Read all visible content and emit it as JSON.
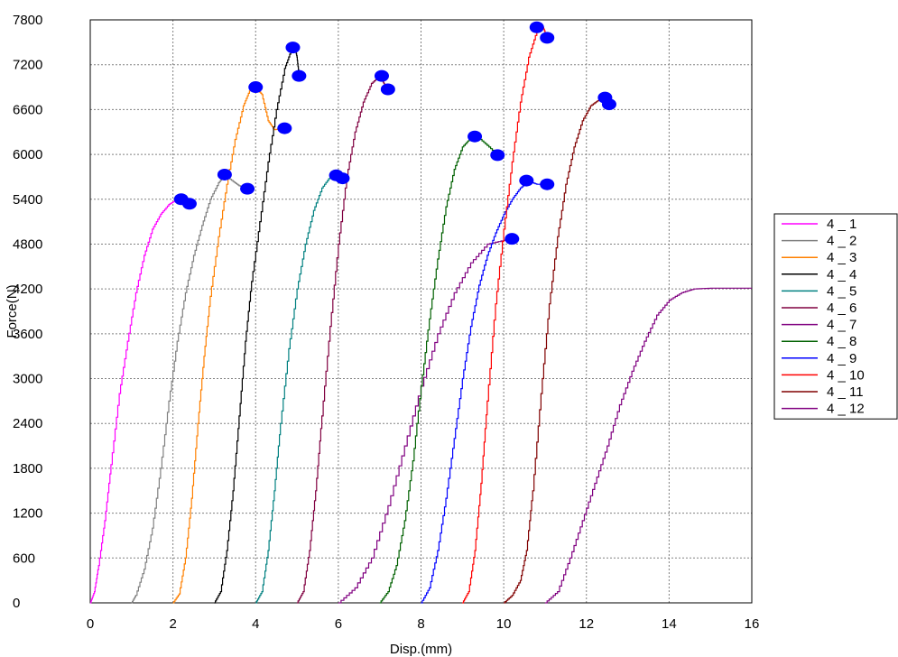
{
  "chart_data": {
    "type": "line",
    "xlabel": "Disp.(mm)",
    "ylabel": "Force(N)",
    "xlim": [
      0,
      16
    ],
    "ylim": [
      0,
      7800
    ],
    "x_ticks": [
      "0",
      "2",
      "4",
      "6",
      "8",
      "10",
      "12",
      "14",
      "16"
    ],
    "y_ticks": [
      "0",
      "600",
      "1200",
      "1800",
      "2400",
      "3000",
      "3600",
      "4200",
      "4800",
      "5400",
      "6000",
      "6600",
      "7200",
      "7800"
    ],
    "grid": true,
    "legend_position": "right",
    "series": [
      {
        "name": "4 _ 1",
        "color": "#ff00ff",
        "points": [
          [
            0,
            0
          ],
          [
            0.1,
            150
          ],
          [
            0.2,
            500
          ],
          [
            0.35,
            1100
          ],
          [
            0.5,
            1850
          ],
          [
            0.7,
            2800
          ],
          [
            0.9,
            3500
          ],
          [
            1.1,
            4150
          ],
          [
            1.3,
            4650
          ],
          [
            1.5,
            5000
          ],
          [
            1.7,
            5200
          ],
          [
            1.9,
            5330
          ],
          [
            2.05,
            5380
          ],
          [
            2.2,
            5400
          ]
        ],
        "markers": [
          [
            2.2,
            5400
          ],
          [
            2.4,
            5340
          ]
        ]
      },
      {
        "name": "4 _ 2",
        "color": "#808080",
        "points": [
          [
            1.0,
            0
          ],
          [
            1.1,
            100
          ],
          [
            1.3,
            450
          ],
          [
            1.5,
            1000
          ],
          [
            1.7,
            1800
          ],
          [
            1.9,
            2700
          ],
          [
            2.1,
            3500
          ],
          [
            2.3,
            4150
          ],
          [
            2.5,
            4650
          ],
          [
            2.7,
            5050
          ],
          [
            2.9,
            5400
          ],
          [
            3.1,
            5620
          ],
          [
            3.25,
            5720
          ],
          [
            3.45,
            5640
          ],
          [
            3.6,
            5580
          ],
          [
            3.8,
            5540
          ]
        ],
        "markers": [
          [
            3.25,
            5730
          ],
          [
            3.8,
            5540
          ]
        ]
      },
      {
        "name": "4 _ 3",
        "color": "#ff8000",
        "points": [
          [
            2.0,
            0
          ],
          [
            2.15,
            120
          ],
          [
            2.3,
            600
          ],
          [
            2.45,
            1400
          ],
          [
            2.6,
            2400
          ],
          [
            2.75,
            3300
          ],
          [
            2.9,
            4100
          ],
          [
            3.1,
            4900
          ],
          [
            3.3,
            5600
          ],
          [
            3.5,
            6200
          ],
          [
            3.7,
            6650
          ],
          [
            3.85,
            6850
          ],
          [
            4.0,
            6900
          ],
          [
            4.15,
            6800
          ],
          [
            4.3,
            6450
          ],
          [
            4.45,
            6330
          ],
          [
            4.7,
            6360
          ]
        ],
        "markers": [
          [
            4.0,
            6900
          ],
          [
            4.7,
            6350
          ]
        ]
      },
      {
        "name": "4 _ 4",
        "color": "#000000",
        "points": [
          [
            3.0,
            0
          ],
          [
            3.15,
            150
          ],
          [
            3.3,
            700
          ],
          [
            3.45,
            1500
          ],
          [
            3.6,
            2500
          ],
          [
            3.75,
            3500
          ],
          [
            3.9,
            4300
          ],
          [
            4.1,
            5100
          ],
          [
            4.3,
            5900
          ],
          [
            4.5,
            6600
          ],
          [
            4.7,
            7150
          ],
          [
            4.85,
            7380
          ],
          [
            4.95,
            7430
          ],
          [
            5.0,
            7300
          ],
          [
            5.05,
            7050
          ]
        ],
        "markers": [
          [
            4.9,
            7430
          ],
          [
            5.05,
            7050
          ]
        ]
      },
      {
        "name": "4 _ 5",
        "color": "#008080",
        "points": [
          [
            4.0,
            0
          ],
          [
            4.15,
            150
          ],
          [
            4.3,
            700
          ],
          [
            4.45,
            1500
          ],
          [
            4.6,
            2400
          ],
          [
            4.8,
            3400
          ],
          [
            5.0,
            4200
          ],
          [
            5.2,
            4800
          ],
          [
            5.4,
            5250
          ],
          [
            5.6,
            5550
          ],
          [
            5.8,
            5700
          ],
          [
            5.95,
            5720
          ],
          [
            6.1,
            5680
          ]
        ],
        "markers": [
          [
            5.95,
            5720
          ],
          [
            6.1,
            5680
          ]
        ]
      },
      {
        "name": "4 _ 6",
        "color": "#800040",
        "points": [
          [
            5.0,
            0
          ],
          [
            5.15,
            150
          ],
          [
            5.3,
            700
          ],
          [
            5.45,
            1500
          ],
          [
            5.6,
            2500
          ],
          [
            5.8,
            3700
          ],
          [
            6.0,
            4800
          ],
          [
            6.2,
            5700
          ],
          [
            6.4,
            6300
          ],
          [
            6.6,
            6700
          ],
          [
            6.8,
            6950
          ],
          [
            7.0,
            7050
          ],
          [
            7.1,
            6950
          ],
          [
            7.2,
            6870
          ]
        ],
        "markers": [
          [
            7.05,
            7050
          ],
          [
            7.2,
            6870
          ]
        ]
      },
      {
        "name": "4 _ 7",
        "color": "#800080",
        "points": [
          [
            6.0,
            0
          ],
          [
            6.4,
            200
          ],
          [
            6.8,
            600
          ],
          [
            7.2,
            1300
          ],
          [
            7.6,
            2100
          ],
          [
            8.0,
            2900
          ],
          [
            8.4,
            3600
          ],
          [
            8.8,
            4150
          ],
          [
            9.2,
            4550
          ],
          [
            9.6,
            4800
          ],
          [
            10.0,
            4850
          ],
          [
            10.2,
            4870
          ]
        ],
        "markers": [
          [
            10.2,
            4870
          ]
        ]
      },
      {
        "name": "4 _ 8",
        "color": "#006000",
        "points": [
          [
            7.0,
            0
          ],
          [
            7.2,
            150
          ],
          [
            7.4,
            500
          ],
          [
            7.6,
            1100
          ],
          [
            7.8,
            1900
          ],
          [
            8.0,
            2900
          ],
          [
            8.2,
            3800
          ],
          [
            8.4,
            4600
          ],
          [
            8.6,
            5300
          ],
          [
            8.8,
            5800
          ],
          [
            9.0,
            6100
          ],
          [
            9.2,
            6220
          ],
          [
            9.35,
            6240
          ],
          [
            9.6,
            6120
          ],
          [
            9.85,
            5990
          ]
        ],
        "markers": [
          [
            9.3,
            6240
          ],
          [
            9.85,
            5990
          ]
        ]
      },
      {
        "name": "4 _ 9",
        "color": "#0000ff",
        "points": [
          [
            8.0,
            0
          ],
          [
            8.2,
            200
          ],
          [
            8.4,
            700
          ],
          [
            8.6,
            1400
          ],
          [
            8.8,
            2200
          ],
          [
            9.0,
            3000
          ],
          [
            9.2,
            3700
          ],
          [
            9.4,
            4250
          ],
          [
            9.6,
            4650
          ],
          [
            9.8,
            4950
          ],
          [
            10.0,
            5200
          ],
          [
            10.2,
            5400
          ],
          [
            10.4,
            5550
          ],
          [
            10.6,
            5640
          ],
          [
            10.8,
            5600
          ],
          [
            11.0,
            5600
          ]
        ],
        "markers": [
          [
            10.55,
            5650
          ],
          [
            11.05,
            5600
          ]
        ]
      },
      {
        "name": "4 _ 10",
        "color": "#ff0000",
        "points": [
          [
            9.0,
            0
          ],
          [
            9.15,
            150
          ],
          [
            9.3,
            700
          ],
          [
            9.45,
            1600
          ],
          [
            9.6,
            2700
          ],
          [
            9.8,
            4000
          ],
          [
            10.0,
            5000
          ],
          [
            10.2,
            5900
          ],
          [
            10.4,
            6700
          ],
          [
            10.6,
            7300
          ],
          [
            10.8,
            7650
          ],
          [
            10.95,
            7700
          ],
          [
            11.05,
            7560
          ]
        ],
        "markers": [
          [
            10.8,
            7700
          ],
          [
            11.05,
            7560
          ]
        ]
      },
      {
        "name": "4 _ 11",
        "color": "#800000",
        "points": [
          [
            10.0,
            0
          ],
          [
            10.2,
            100
          ],
          [
            10.4,
            300
          ],
          [
            10.55,
            700
          ],
          [
            10.7,
            1500
          ],
          [
            10.9,
            2800
          ],
          [
            11.1,
            4000
          ],
          [
            11.3,
            4900
          ],
          [
            11.5,
            5600
          ],
          [
            11.7,
            6100
          ],
          [
            11.9,
            6450
          ],
          [
            12.1,
            6650
          ],
          [
            12.3,
            6730
          ],
          [
            12.45,
            6750
          ],
          [
            12.55,
            6670
          ]
        ],
        "markers": [
          [
            12.45,
            6760
          ],
          [
            12.55,
            6670
          ]
        ]
      },
      {
        "name": "4 _ 12",
        "color": "#800080",
        "points": [
          [
            11.0,
            0
          ],
          [
            11.3,
            150
          ],
          [
            11.6,
            600
          ],
          [
            11.9,
            1100
          ],
          [
            12.2,
            1600
          ],
          [
            12.5,
            2100
          ],
          [
            12.8,
            2650
          ],
          [
            13.1,
            3100
          ],
          [
            13.4,
            3500
          ],
          [
            13.7,
            3850
          ],
          [
            14.0,
            4050
          ],
          [
            14.3,
            4150
          ],
          [
            14.6,
            4200
          ],
          [
            15.0,
            4210
          ],
          [
            16.0,
            4210
          ]
        ],
        "markers": []
      }
    ],
    "legend_entries": [
      "4 _ 1",
      "4 _ 2",
      "4 _ 3",
      "4 _ 4",
      "4 _ 5",
      "4 _ 6",
      "4 _ 7",
      "4 _ 8",
      "4 _ 9",
      "4 _ 10",
      "4 _ 11",
      "4 _ 12"
    ],
    "marker_color": "#0000ff",
    "grid_color": "#808080"
  }
}
